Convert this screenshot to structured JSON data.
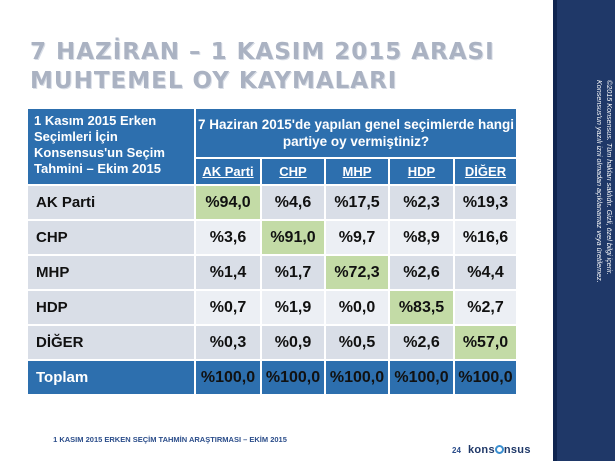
{
  "title": {
    "line1": "7 HAZİRAN – 1 KASIM 2015 ARASI",
    "line2": "MUHTEMEL OY KAYMALARI"
  },
  "table": {
    "corner_label": "1 Kasım 2015 Erken Seçimleri İçin Konsensus'un Seçim Tahmini – Ekim 2015",
    "question": "7 Haziran 2015'de yapılan genel seçimlerde hangi partiye oy vermiştiniz?",
    "columns": [
      "AK Parti",
      "CHP",
      "MHP",
      "HDP",
      "DİĞER"
    ],
    "rows": [
      {
        "label": "AK Parti",
        "values": [
          "%94,0",
          "%4,6",
          "%17,5",
          "%2,3",
          "%19,3"
        ]
      },
      {
        "label": "CHP",
        "values": [
          "%3,6",
          "%91,0",
          "%9,7",
          "%8,9",
          "%16,6"
        ]
      },
      {
        "label": "MHP",
        "values": [
          "%1,4",
          "%1,7",
          "%72,3",
          "%2,6",
          "%4,4"
        ]
      },
      {
        "label": "HDP",
        "values": [
          "%0,7",
          "%1,9",
          "%0,0",
          "%83,5",
          "%2,7"
        ]
      },
      {
        "label": "DİĞER",
        "values": [
          "%0,3",
          "%0,9",
          "%0,5",
          "%2,6",
          "%57,0"
        ]
      }
    ],
    "total": {
      "label": "Toplam",
      "values": [
        "%100,0",
        "%100,0",
        "%100,0",
        "%100,0",
        "%100,0"
      ]
    }
  },
  "copyright": {
    "line1": "©2015 Konsensus. Tüm hakları saklıdır. Gizli, özel bilgi içerir.",
    "line2": "Konsensus'un yazılı izni olmadan açıklanamaz veya üretilemez."
  },
  "footer": {
    "text": "1 KASIM 2015 ERKEN SEÇİM TAHMİN ARAŞTIRMASI – EKİM 2015",
    "page": "24",
    "logo_pre": "kons",
    "logo_post": "nsus"
  },
  "colors": {
    "header_blue": "#2d6fae",
    "sidebar_navy": "#1f3868",
    "diagonal_green": "#c3dba6"
  }
}
